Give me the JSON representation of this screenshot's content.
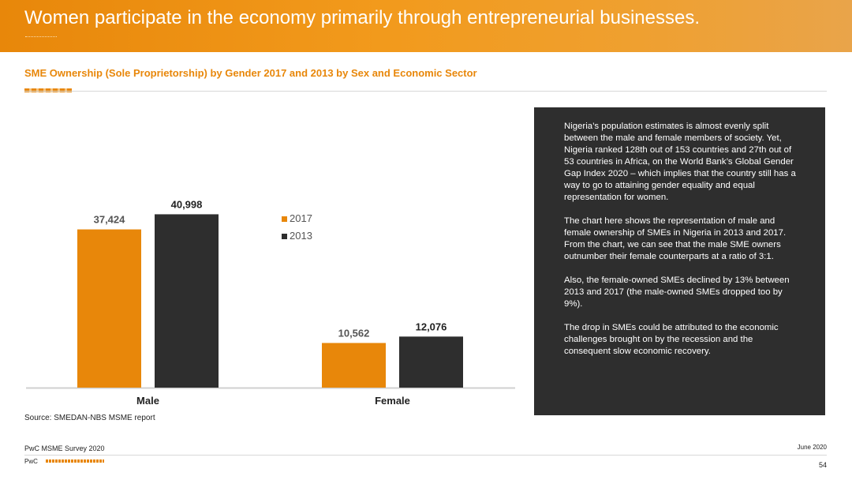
{
  "header": {
    "title": "Women participate in the economy primarily through entrepreneurial businesses."
  },
  "subtitle": "SME Ownership (Sole Proprietorship) by Gender 2017 and 2013 by Sex and Economic Sector",
  "chart_data": {
    "type": "bar",
    "categories": [
      "Male",
      "Female"
    ],
    "series": [
      {
        "name": "2017",
        "values": [
          37424,
          10562
        ],
        "labels": [
          "37,424",
          "10,562"
        ],
        "color": "#e8870a"
      },
      {
        "name": "2013",
        "values": [
          40998,
          12076
        ],
        "labels": [
          "40,998",
          "12,076"
        ],
        "color": "#2e2e2e"
      }
    ],
    "title": "",
    "xlabel": "",
    "ylabel": "",
    "ylim": [
      0,
      45000
    ],
    "grid": false,
    "legend_position": "center"
  },
  "source": "Source: SMEDAN-NBS MSME report",
  "panel": {
    "paragraphs": [
      "Nigeria’s population estimates is almost evenly split between the male and female members of society. Yet, Nigeria ranked 128th out of 153 countries and 27th out of 53 countries in Africa, on the World Bank’s Global Gender Gap Index 2020 – which implies that the country still has a way to go to attaining gender equality and equal representation for women.",
      "The chart here shows the representation of male and female ownership of SMEs in Nigeria in 2013 and 2017. From the chart, we can see that the male SME owners outnumber their female counterparts at a ratio of 3:1.",
      "Also, the female-owned SMEs declined by 13% between 2013 and 2017 (the male-owned SMEs dropped too by 9%).",
      "The drop in SMEs could be attributed to the economic challenges brought on by the recession and the consequent slow economic recovery."
    ]
  },
  "footer": {
    "survey": "PwC MSME Survey 2020",
    "date": "June 2020",
    "brand": "PwC",
    "page": "54"
  }
}
